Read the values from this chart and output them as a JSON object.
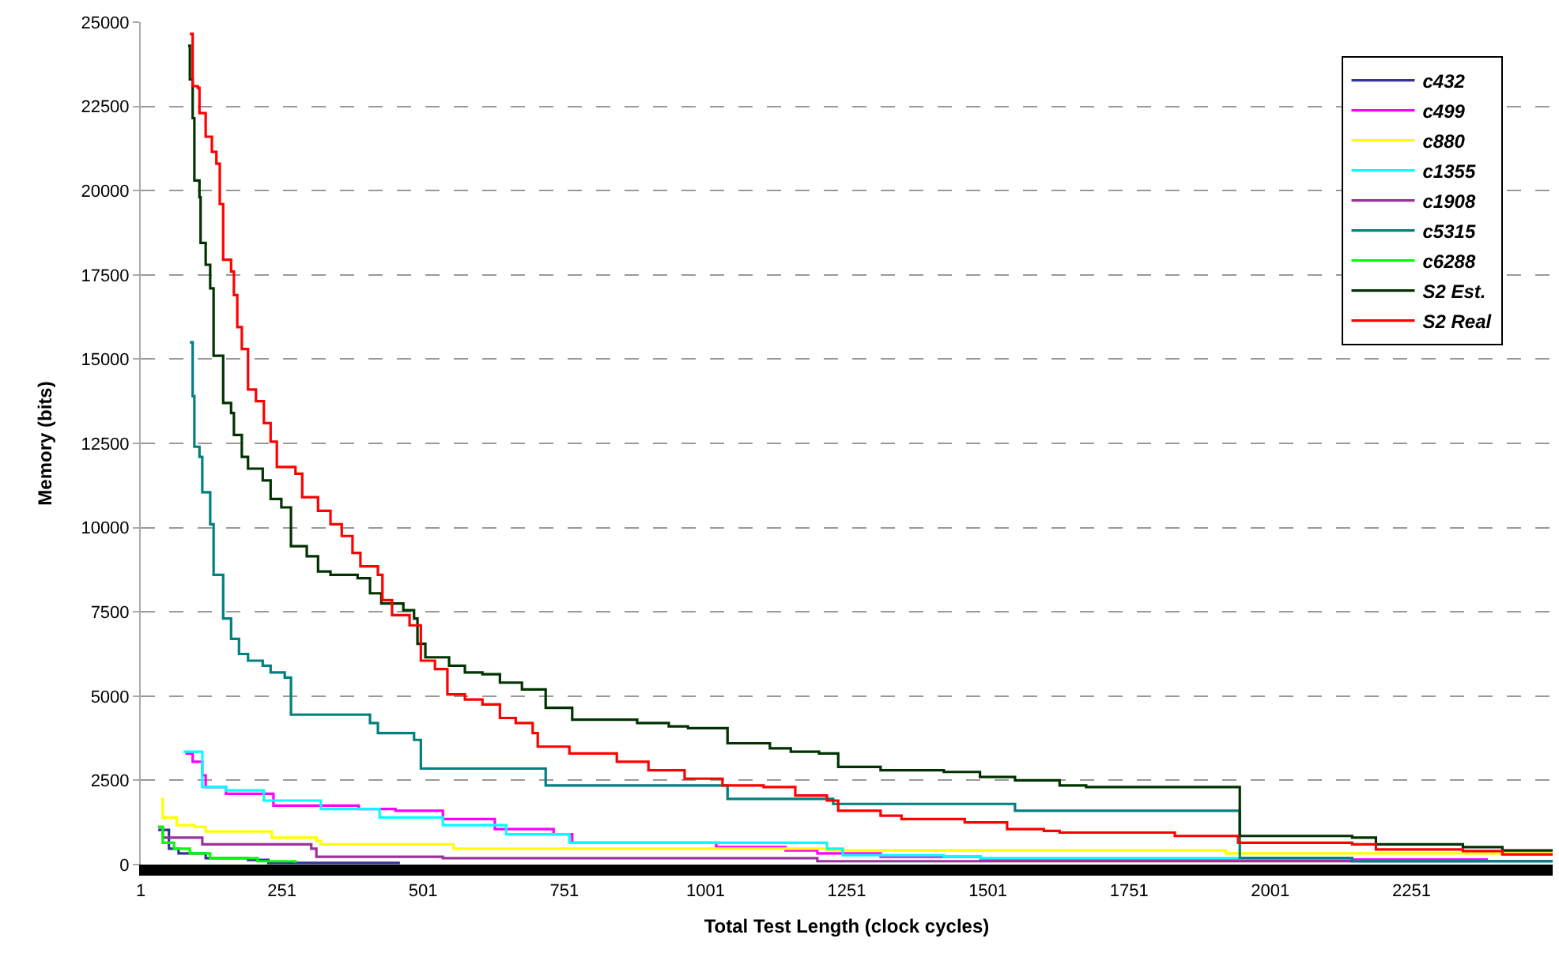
{
  "chart_data": {
    "type": "step",
    "xlabel": "Total Test Length (clock cycles)",
    "ylabel": "Memory (bits)",
    "xlim": [
      1,
      2501
    ],
    "xticks": [
      1,
      251,
      501,
      751,
      1001,
      1251,
      1501,
      1751,
      2001,
      2251
    ],
    "ylim": [
      0,
      25000
    ],
    "yticks": [
      0,
      2500,
      5000,
      7500,
      10000,
      12500,
      15000,
      17500,
      20000,
      22500,
      25000
    ],
    "grid": "y",
    "legend": "top right",
    "marker": "none",
    "line_style": "solid",
    "series": [
      {
        "name": "c432",
        "color": "#333399",
        "x": [
          32,
          51,
          68,
          116,
          191,
          227,
          460
        ],
        "values": [
          1030,
          470,
          330,
          190,
          140,
          50,
          50
        ]
      },
      {
        "name": "c499",
        "color": "#ff00ff",
        "x": [
          80,
          93,
          110,
          116,
          152,
          236,
          387,
          452,
          536,
          628,
          732,
          765,
          1020,
          1143,
          1199,
          1311,
          1488,
          2384
        ],
        "values": [
          3300,
          3050,
          2650,
          2300,
          2100,
          1750,
          1650,
          1600,
          1350,
          1050,
          900,
          650,
          520,
          420,
          330,
          230,
          150,
          100
        ]
      },
      {
        "name": "c880",
        "color": "#ffff00",
        "x": [
          37,
          40,
          65,
          96,
          116,
          233,
          312,
          320,
          555,
          1216,
          1922,
          2501
        ],
        "values": [
          1950,
          1400,
          1170,
          1120,
          980,
          800,
          700,
          600,
          470,
          420,
          330,
          330
        ]
      },
      {
        "name": "c1355",
        "color": "#00ffff",
        "x": [
          77,
          110,
          152,
          219,
          320,
          424,
          536,
          648,
          760,
          1216,
          1244,
          1423,
          1488,
          2146,
          2501
        ],
        "values": [
          3350,
          2300,
          2200,
          1900,
          1650,
          1400,
          1170,
          900,
          650,
          470,
          280,
          230,
          190,
          100,
          100
        ]
      },
      {
        "name": "c1908",
        "color": "#993399",
        "x": [
          32,
          40,
          110,
          303,
          312,
          536,
          1199,
          2501
        ],
        "values": [
          1120,
          800,
          600,
          470,
          230,
          190,
          100,
          100
        ]
      },
      {
        "name": "c5315",
        "color": "#008080",
        "x": [
          88,
          93,
          96,
          105,
          110,
          124,
          130,
          147,
          161,
          175,
          191,
          217,
          231,
          256,
          267,
          407,
          421,
          485,
          497,
          718,
          1040,
          1227,
          1549,
          1947,
          2146,
          2501
        ],
        "values": [
          15500,
          13900,
          12400,
          12100,
          11050,
          10100,
          8600,
          7300,
          6700,
          6250,
          6050,
          5900,
          5700,
          5550,
          4450,
          4200,
          3900,
          3700,
          2850,
          2350,
          1950,
          1800,
          1600,
          200,
          100,
          100
        ]
      },
      {
        "name": "c6288",
        "color": "#00ff00",
        "x": [
          32,
          40,
          60,
          88,
          124,
          208,
          275
        ],
        "values": [
          1120,
          650,
          470,
          330,
          190,
          100,
          50
        ]
      },
      {
        "name": "S2 Est.",
        "color": "#003300",
        "x": [
          85,
          88,
          93,
          96,
          105,
          107,
          116,
          124,
          130,
          147,
          161,
          166,
          180,
          191,
          217,
          231,
          250,
          267,
          295,
          315,
          337,
          385,
          407,
          427,
          466,
          485,
          491,
          505,
          547,
          575,
          606,
          637,
          676,
          718,
          765,
          880,
          936,
          970,
          1040,
          1115,
          1152,
          1202,
          1236,
          1311,
          1423,
          1487,
          1549,
          1628,
          1675,
          1947,
          2146,
          2188,
          2342,
          2412,
          2501
        ],
        "values": [
          24300,
          23300,
          22150,
          20300,
          19800,
          18450,
          17800,
          17100,
          15100,
          13700,
          13400,
          12750,
          12100,
          11750,
          11400,
          10850,
          10600,
          9450,
          9150,
          8700,
          8600,
          8500,
          8050,
          7750,
          7550,
          7300,
          6550,
          6150,
          5900,
          5700,
          5650,
          5400,
          5200,
          4650,
          4300,
          4200,
          4100,
          4050,
          3600,
          3450,
          3350,
          3300,
          2900,
          2800,
          2750,
          2600,
          2500,
          2350,
          2300,
          850,
          800,
          600,
          520,
          420,
          420
        ]
      },
      {
        "name": "S2 Real",
        "color": "#ff0000",
        "x": [
          88,
          93,
          102,
          105,
          116,
          127,
          135,
          141,
          147,
          161,
          166,
          172,
          180,
          191,
          205,
          219,
          231,
          242,
          275,
          287,
          315,
          337,
          357,
          376,
          390,
          421,
          429,
          446,
          477,
          497,
          522,
          544,
          575,
          606,
          637,
          665,
          695,
          704,
          760,
          844,
          900,
          964,
          1031,
          1104,
          1160,
          1216,
          1236,
          1311,
          1348,
          1460,
          1535,
          1600,
          1628,
          1832,
          1944,
          2146,
          2188,
          2342,
          2412,
          2501
        ],
        "values": [
          24650,
          23100,
          23050,
          22300,
          21600,
          21150,
          20800,
          19600,
          17950,
          17600,
          16900,
          15950,
          15300,
          14100,
          13750,
          13100,
          12550,
          11800,
          11600,
          10900,
          10500,
          10100,
          9750,
          9250,
          8850,
          8600,
          7850,
          7400,
          7100,
          6050,
          5800,
          5050,
          4900,
          4750,
          4350,
          4200,
          3900,
          3500,
          3300,
          3050,
          2800,
          2550,
          2350,
          2300,
          2050,
          1900,
          1600,
          1450,
          1350,
          1250,
          1050,
          1000,
          950,
          850,
          650,
          600,
          450,
          400,
          300,
          300
        ]
      }
    ]
  }
}
